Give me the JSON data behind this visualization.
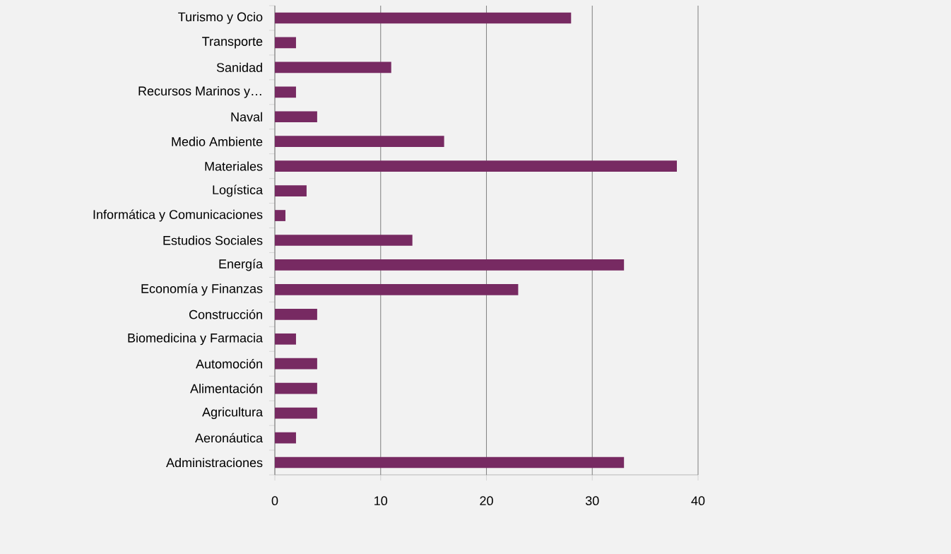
{
  "chart_data": {
    "type": "bar",
    "orientation": "horizontal",
    "categories": [
      "Turismo y Ocio",
      "Transporte",
      "Sanidad",
      "Recursos Marinos y…",
      "Naval",
      "Medio Ambiente",
      "Materiales",
      "Logística",
      "Informática y Comunicaciones",
      "Estudios Sociales",
      "Energía",
      "Economía y Finanzas",
      "Construcción",
      "Biomedicina y Farmacia",
      "Automoción",
      "Alimentación",
      "Agricultura",
      "Aeronáutica",
      "Administraciones"
    ],
    "values": [
      28,
      2,
      11,
      2,
      4,
      16,
      38,
      3,
      1,
      13,
      33,
      23,
      4,
      2,
      4,
      4,
      4,
      2,
      33
    ],
    "color": "#772a62",
    "xlim": [
      0,
      40
    ],
    "xticks": [
      0,
      10,
      20,
      30,
      40
    ],
    "grid": "x"
  }
}
